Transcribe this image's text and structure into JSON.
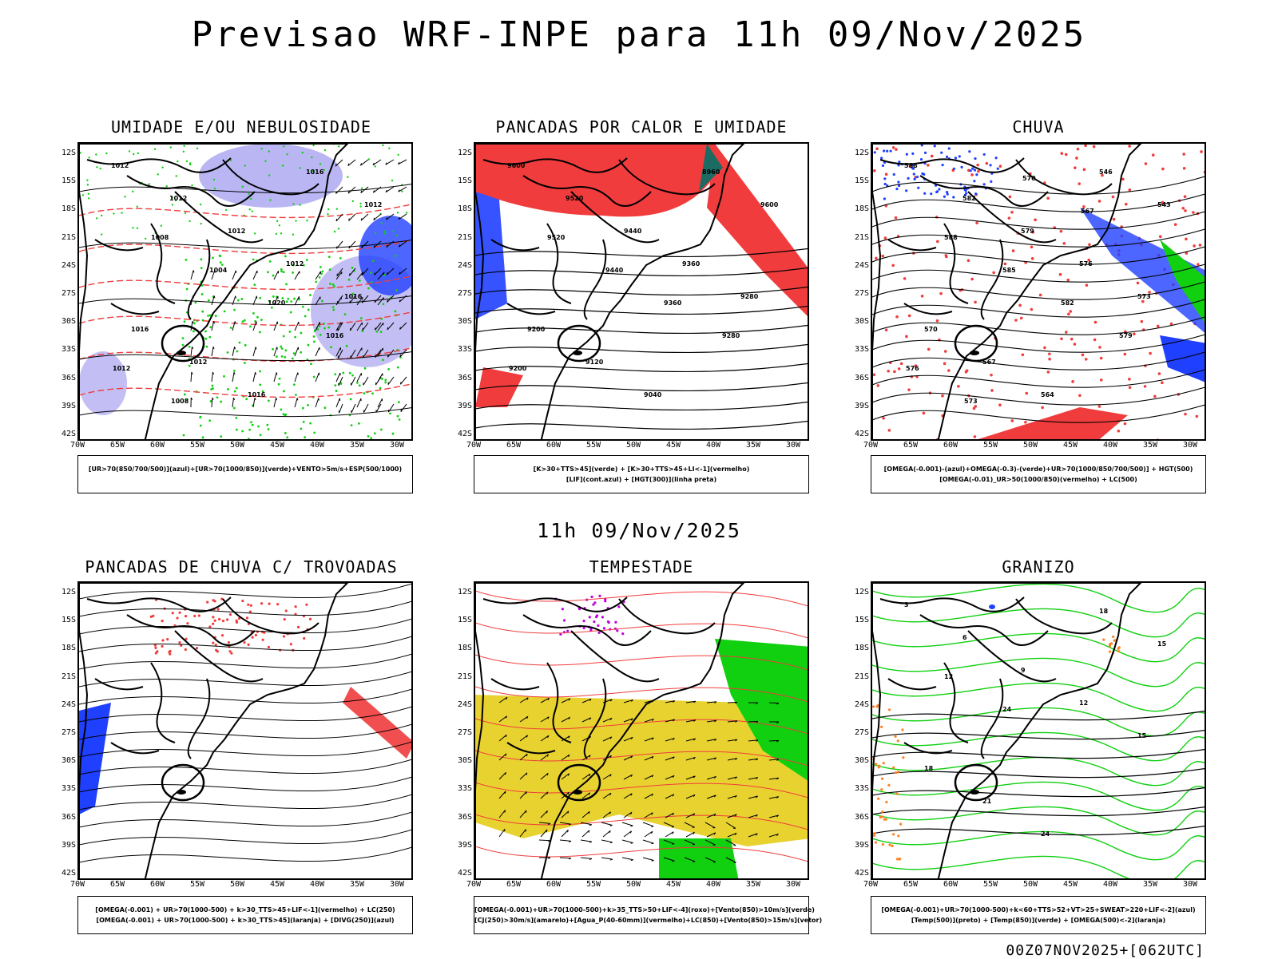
{
  "title": "Previsao WRF-INPE  para 11h 09/Nov/2025",
  "middle_title": "11h 09/Nov/2025",
  "footer": "00Z07NOV2025+[062UTC]",
  "lat_labels": [
    "12S",
    "15S",
    "18S",
    "21S",
    "24S",
    "27S",
    "30S",
    "33S",
    "36S",
    "39S",
    "42S"
  ],
  "lon_labels": [
    "70W",
    "65W",
    "60W",
    "55W",
    "50W",
    "45W",
    "40W",
    "35W",
    "30W"
  ],
  "colors": {
    "red": "#f03c3c",
    "green": "#10d010",
    "blue": "#2040ff",
    "lavender": "#a9a4f0",
    "yellow": "#e8d230",
    "teal": "#1b6b63",
    "purple": "#c000e0",
    "orange": "#ff8020"
  },
  "panels": [
    {
      "title": "UMIDADE E/OU NEBULOSIDADE",
      "legend": [
        "[UR>70(850/700/500)](azul)+[UR>70(1000/850)](verde)+VENTO>5m/s+ESP(500/1000)"
      ],
      "contour_labels": [
        "1012",
        "1012",
        "1012",
        "1012",
        "1016",
        "1016",
        "1012",
        "1016",
        "1016",
        "1012",
        "1008",
        "1004",
        "1020",
        "1016",
        "1012",
        "1008"
      ]
    },
    {
      "title": "PANCADAS POR CALOR E UMIDADE",
      "legend": [
        "[K>30+TTS>45](verde) + [K>30+TTS>45+LI<-1](vermelho)",
        "[LIF](cont.azul) + [HGT(300)](linha preta)"
      ],
      "contour_labels": [
        "9600",
        "9520",
        "9440",
        "9360",
        "9280",
        "9200",
        "9120",
        "9040",
        "8960",
        "9600",
        "9520",
        "9440",
        "9360",
        "9280",
        "9200"
      ]
    },
    {
      "title": "CHUVA",
      "legend": [
        "[OMEGA(-0.001)-(azul)+OMEGA(-0.3)-(verde)+UR>70(1000/850/700/500)] + HGT(500)",
        "[OMEGA(-0.01)_UR>50(1000/850)(vermelho) + LC(500)"
      ],
      "contour_labels": [
        "588",
        "582",
        "579",
        "576",
        "573",
        "570",
        "567",
        "564",
        "546",
        "543",
        "588",
        "585",
        "582",
        "579",
        "576",
        "573",
        "570",
        "567"
      ]
    },
    {
      "title": "PANCADAS DE CHUVA C/ TROVOADAS",
      "legend": [
        "[OMEGA(-0.001) + UR>70(1000-500) + k>30_TTS>45+LIF<-1](vermelho) + LC(250)",
        "[OMEGA(-0.001) + UR>70(1000-500) + k>30_TTS>45](laranja) + [DIVG(250)](azul)"
      ],
      "contour_labels": []
    },
    {
      "title": "TEMPESTADE",
      "legend": [
        "[OMEGA(-0.001)+UR>70(1000-500)+k>35_TTS>50+LIF<-4](roxo)+[Vento(850)>10m/s](verde)",
        "[CJ(250)>30m/s](amarelo)+[Agua_P(40-60mm)](vermelho)+LC(850)+[Vento(850)>15m/s](vetor)"
      ],
      "contour_labels": []
    },
    {
      "title": "GRANIZO",
      "legend": [
        "[OMEGA(-0.001)+UR>70(1000-500)+k<60+TTS>52+VT>25+SWEAT>220+LIF<-2](azul)",
        "[Temp(500)](preto) + [Temp(850)](verde) + [OMEGA(500)<-2](laranja)"
      ],
      "contour_labels": [
        "3",
        "6",
        "9",
        "12",
        "15",
        "18",
        "21",
        "24",
        "18",
        "15",
        "12",
        "24"
      ]
    }
  ]
}
